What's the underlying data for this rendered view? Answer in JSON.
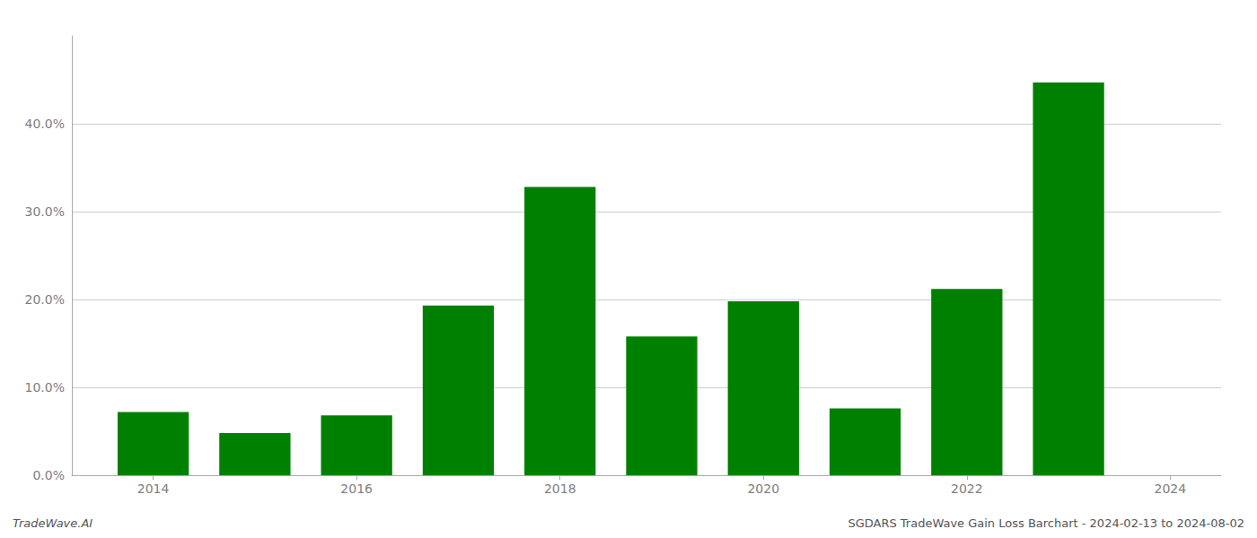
{
  "chart_data": {
    "type": "bar",
    "x": [
      2014,
      2015,
      2016,
      2017,
      2018,
      2019,
      2020,
      2021,
      2022,
      2023
    ],
    "values": [
      0.072,
      0.048,
      0.068,
      0.193,
      0.328,
      0.158,
      0.198,
      0.076,
      0.212,
      0.447
    ],
    "color": "#008000",
    "xlim": [
      2013.2,
      2024.5
    ],
    "xticks": [
      2014,
      2016,
      2018,
      2020,
      2022,
      2024
    ],
    "ylim": [
      0,
      0.5
    ],
    "yticks": [
      {
        "value": 0.0,
        "label": "0.0%"
      },
      {
        "value": 0.1,
        "label": "10.0%"
      },
      {
        "value": 0.2,
        "label": "20.0%"
      },
      {
        "value": 0.3,
        "label": "30.0%"
      },
      {
        "value": 0.4,
        "label": "40.0%"
      }
    ],
    "grid": true,
    "annotations": [
      "TradeWave.AI",
      "SGDARS TradeWave Gain Loss Barchart - 2024-02-13 to 2024-08-02"
    ]
  }
}
